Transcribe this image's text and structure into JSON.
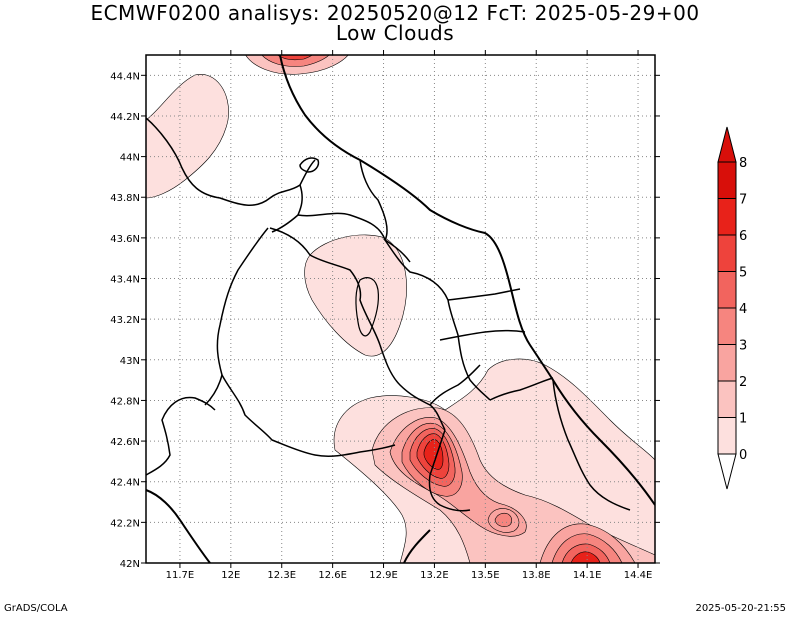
{
  "title": {
    "line1": "ECMWF0200 analisys: 20250520@12 FcT: 2025-05-29+00",
    "line2": "Low Clouds"
  },
  "footer": {
    "left": "GrADS/COLA",
    "right": "2025-05-20-21:55"
  },
  "chart_data": {
    "type": "heatmap",
    "title": "Low Clouds",
    "x_axis": {
      "range": [
        11.5,
        14.5
      ],
      "ticks": [
        11.7,
        12.0,
        12.3,
        12.6,
        12.9,
        13.2,
        13.5,
        13.8,
        14.1,
        14.4
      ],
      "tick_labels": [
        "11.7E",
        "12E",
        "12.3E",
        "12.6E",
        "12.9E",
        "13.2E",
        "13.5E",
        "13.8E",
        "14.1E",
        "14.4E"
      ]
    },
    "y_axis": {
      "range": [
        42.0,
        44.5
      ],
      "ticks": [
        42.0,
        42.2,
        42.4,
        42.6,
        42.8,
        43.0,
        43.2,
        43.4,
        43.6,
        43.8,
        44.0,
        44.2,
        44.4
      ],
      "tick_labels": [
        "42N",
        "42.2N",
        "42.4N",
        "42.6N",
        "42.8N",
        "43N",
        "43.2N",
        "43.4N",
        "43.6N",
        "43.8N",
        "44N",
        "44.2N",
        "44.4N"
      ]
    },
    "grid": true,
    "colorbar": {
      "placement": "right",
      "levels": [
        0,
        1,
        2,
        3,
        4,
        5,
        6,
        7,
        8
      ],
      "labels": [
        "0",
        "1",
        "2",
        "3",
        "4",
        "5",
        "6",
        "7",
        "8"
      ],
      "colors": [
        "#ffffff",
        "#fde0de",
        "#fbc3c0",
        "#f9a4a0",
        "#f6857f",
        "#f2645e",
        "#ee433c",
        "#e8221a",
        "#d80f0a"
      ]
    },
    "colors": {
      "light_fill": "#fde0de",
      "frame": "#000000",
      "grid": "#888888"
    }
  }
}
